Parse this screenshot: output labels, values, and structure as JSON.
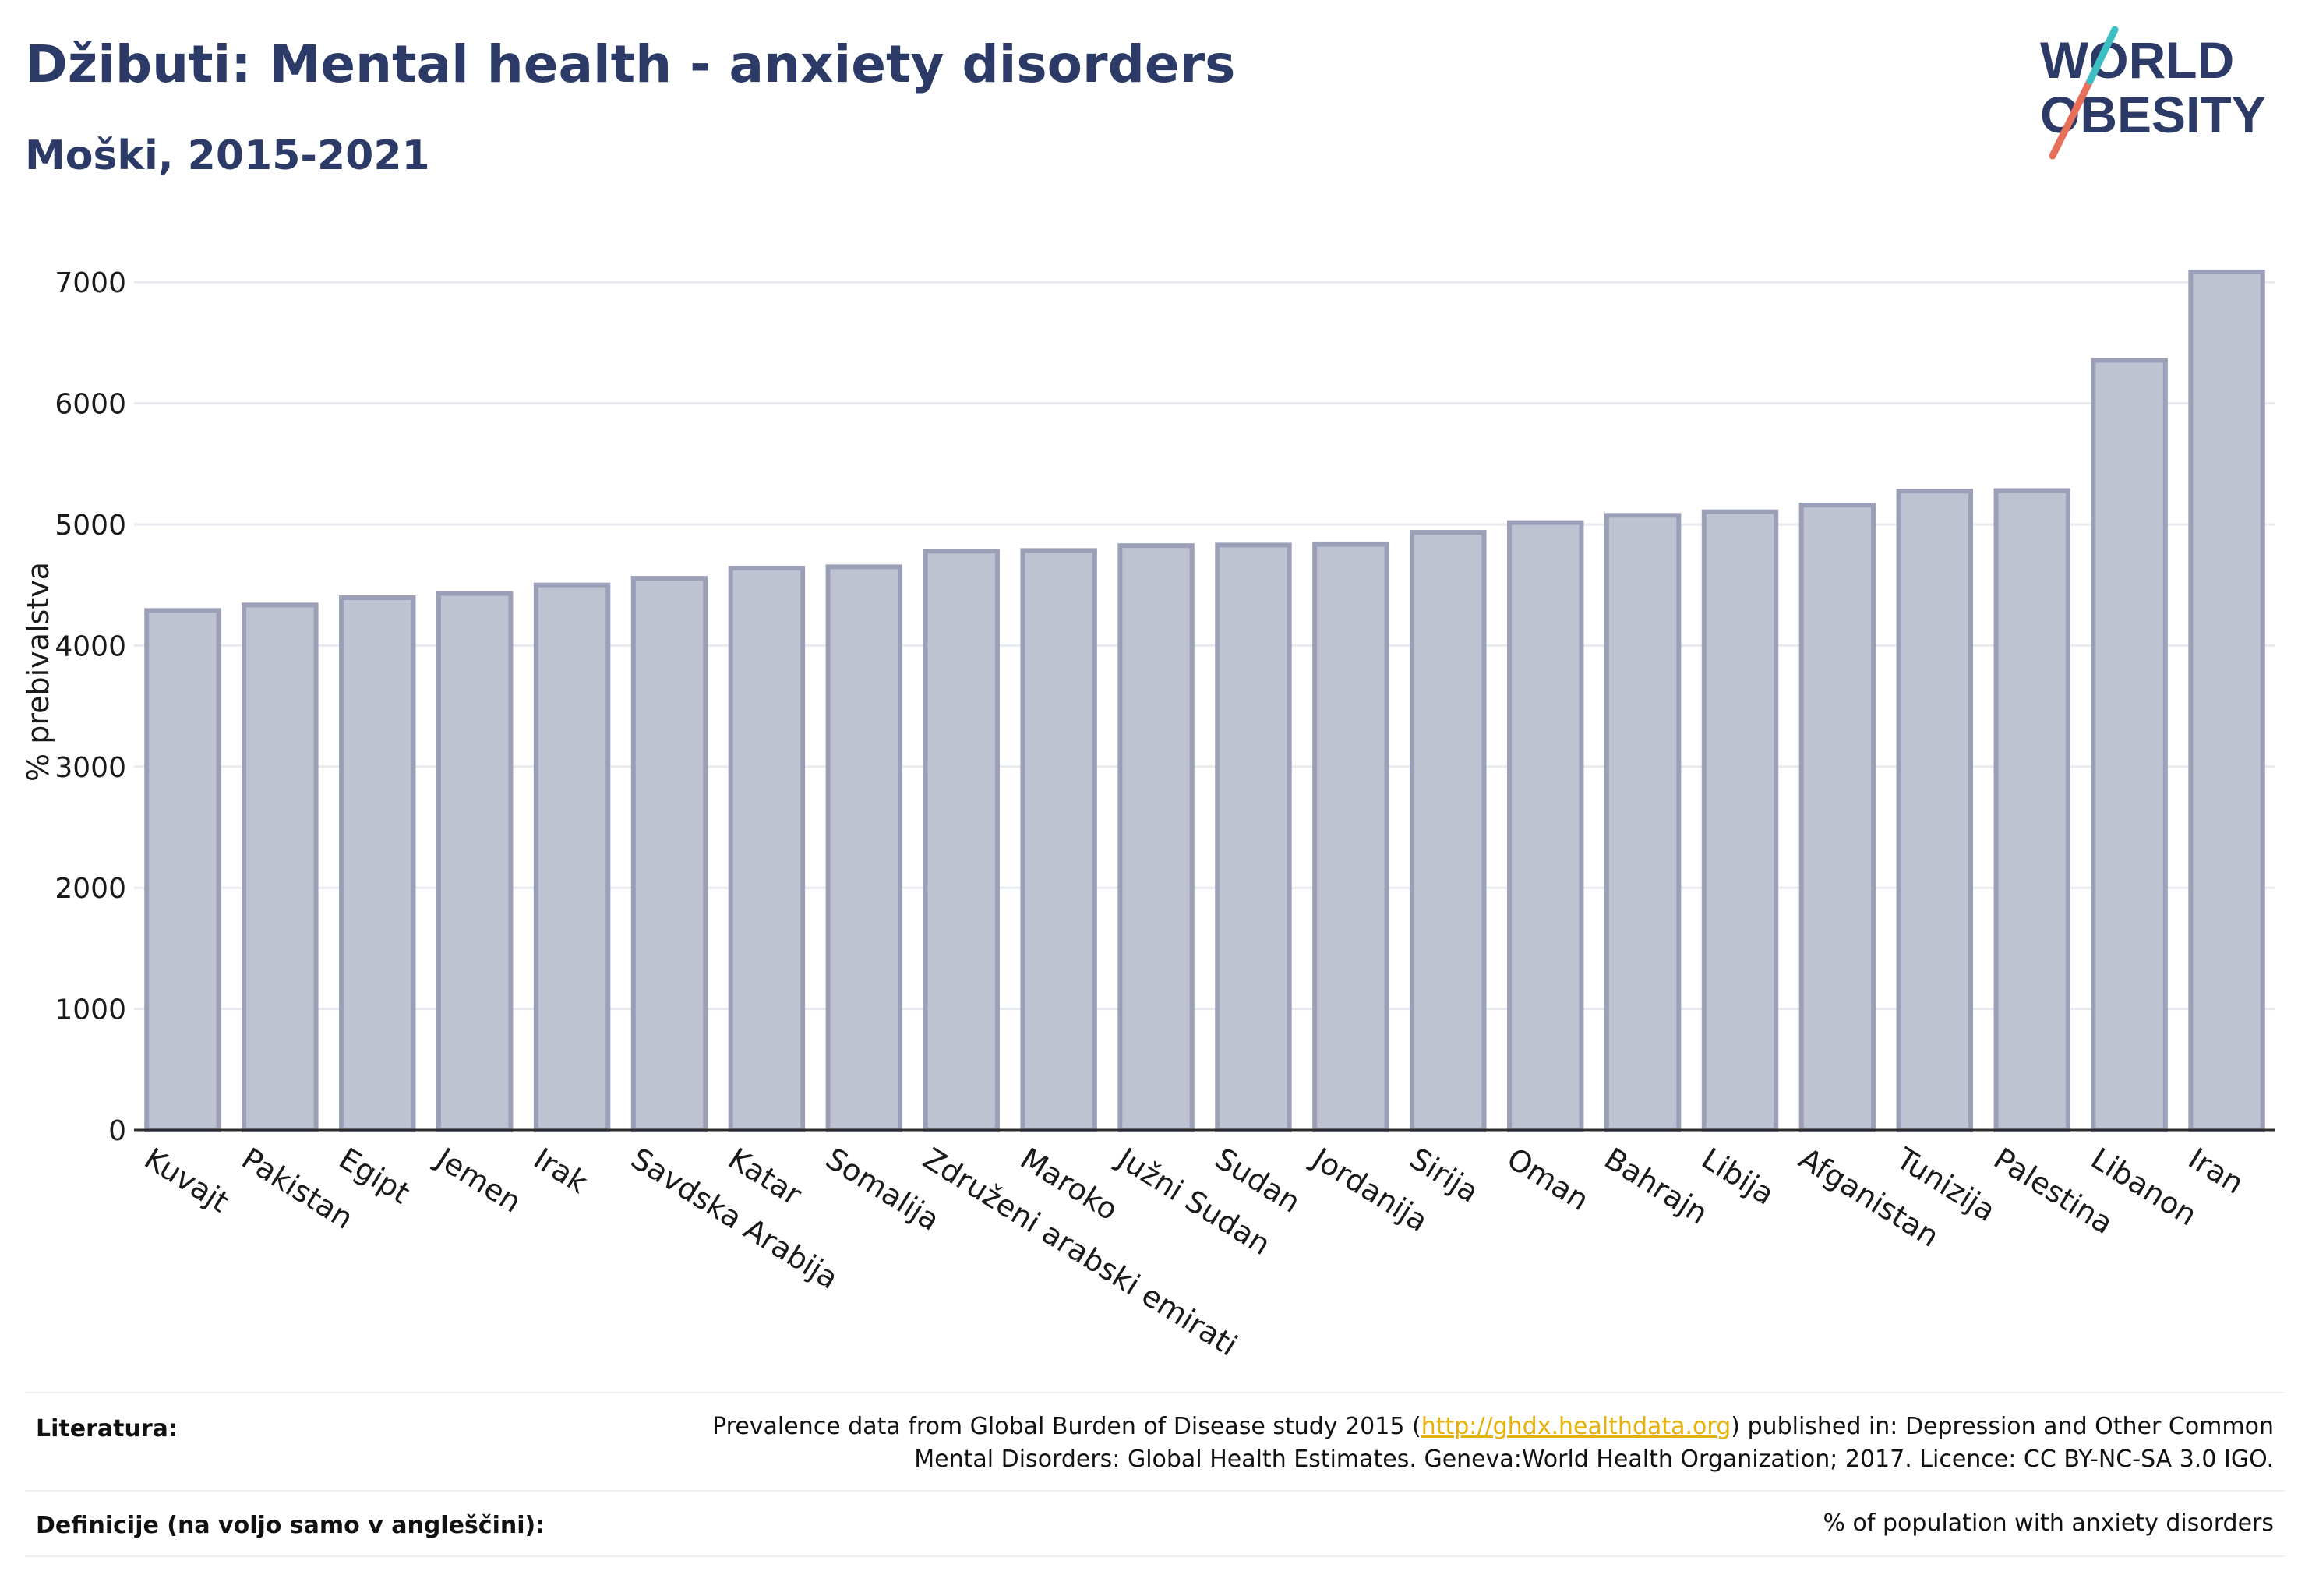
{
  "header": {
    "title": "Džibuti: Mental health - anxiety disorders",
    "subtitle": "Moški, 2015-2021"
  },
  "logo": {
    "line1": "WORLD",
    "line2": "OBESITY",
    "accent_colors": [
      "#e8705a",
      "#3bbfc2"
    ]
  },
  "chart_data": {
    "type": "bar",
    "title": "",
    "xlabel": "",
    "ylabel": "% prebivalstva",
    "categories": [
      "Kuvajt",
      "Pakistan",
      "Egipt",
      "Jemen",
      "Irak",
      "Savdska Arabija",
      "Katar",
      "Somalija",
      "Združeni arabski emirati",
      "Maroko",
      "Južni Sudan",
      "Sudan",
      "Jordanija",
      "Sirija",
      "Oman",
      "Bahrajn",
      "Libija",
      "Afganistan",
      "Tunizija",
      "Palestina",
      "Libanon",
      "Iran"
    ],
    "values": [
      4290,
      4335,
      4395,
      4430,
      4500,
      4555,
      4640,
      4650,
      4780,
      4785,
      4825,
      4830,
      4835,
      4935,
      5015,
      5075,
      5105,
      5160,
      5275,
      5280,
      6355,
      7085
    ],
    "ylim": [
      0,
      7400
    ],
    "yticks": [
      0,
      1000,
      2000,
      3000,
      4000,
      5000,
      6000,
      7000
    ],
    "grid": true,
    "bar_fill": "#bfc2d0",
    "bar_stroke": "#9ba0b8"
  },
  "footer": {
    "references_label": "Literatura:",
    "references_pre": "Prevalence data from Global Burden of Disease study 2015 (",
    "references_link": "http://ghdx.healthdata.org",
    "references_post": ") published in: Depression and Other Common",
    "references_line2": "Mental Disorders: Global Health Estimates. Geneva:World Health Organization; 2017. Licence: CC BY-NC-SA 3.0 IGO.",
    "definitions_label": "Definicije (na voljo samo v angleščini):",
    "definitions_value": "% of population with anxiety disorders"
  }
}
